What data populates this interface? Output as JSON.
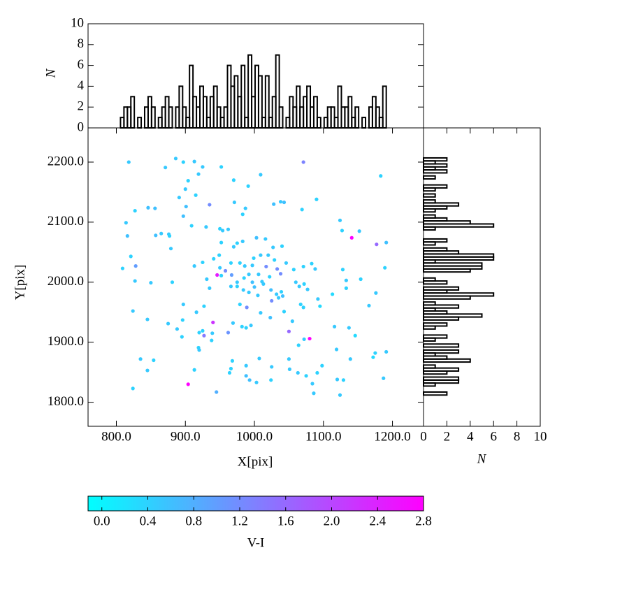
{
  "chart_data": [
    {
      "type": "scatter",
      "x_label": "X[pix]",
      "y_label": "Y[pix]",
      "colormap": "cool",
      "xlim": [
        759,
        1245
      ],
      "ylim": [
        1760,
        2257
      ],
      "xticks": [
        {
          "value": 800,
          "label": "800.0"
        },
        {
          "value": 900,
          "label": "900.0"
        },
        {
          "value": 1000,
          "label": "1000.0"
        },
        {
          "value": 1100,
          "label": "1100.0"
        },
        {
          "value": 1200,
          "label": "1200.0"
        }
      ],
      "yticks": [
        {
          "value": 1800,
          "label": "1800.0"
        },
        {
          "value": 1900,
          "label": "1900.0"
        },
        {
          "value": 2000,
          "label": "2000.0"
        },
        {
          "value": 2100,
          "label": "2100.0"
        },
        {
          "value": 2200,
          "label": "2200.0"
        }
      ],
      "x": [
        818,
        886,
        897,
        913,
        925,
        952,
        871,
        970,
        919,
        1009,
        1071,
        1183,
        904,
        991,
        900,
        891,
        915,
        935,
        901,
        846,
        856,
        827,
        971,
        987,
        1028,
        1038,
        1043,
        1090,
        1069,
        897,
        983,
        814,
        930,
        909,
        950,
        954,
        962,
        1124,
        1127,
        1152,
        1141,
        857,
        865,
        876,
        877,
        816,
        879,
        983,
        1003,
        1016,
        975,
        1027,
        1040,
        952,
        970,
        1191,
        1177,
        1009,
        999,
        1020,
        1029,
        949,
        821,
        809,
        828,
        913,
        925,
        941,
        950,
        966,
        979,
        986,
        997,
        1017,
        1033,
        1046,
        1057,
        1071,
        1083,
        1088,
        1128,
        1189,
        946,
        958,
        967,
        931,
        952,
        975,
        985,
        992,
        997,
        1006,
        1011,
        1022,
        1038,
        827,
        850,
        881,
        935,
        966,
        975,
        984,
        992,
        1000,
        1013,
        1024,
        1032,
        1039,
        1060,
        1065,
        1072,
        1077,
        1133,
        1133,
        1154,
        1176,
        1113,
        1005,
        1025,
        1092,
        1035,
        1041,
        897,
        927,
        979,
        989,
        1067,
        1071,
        1095,
        1166,
        824,
        1009,
        1043,
        916,
        1023,
        845,
        940,
        875,
        896,
        969,
        1055,
        995,
        982,
        1116,
        888,
        925,
        962,
        920,
        939,
        988,
        1050,
        1137,
        927,
        895,
        938,
        1146,
        1072,
        1080,
        1064,
        919,
        920,
        1119,
        1175,
        1191,
        1172,
        835,
        854,
        1007,
        968,
        1050,
        1139,
        988,
        1025,
        1098,
        1051,
        913,
        966,
        845,
        964,
        1063,
        1091,
        988,
        1075,
        993,
        1120,
        1129,
        1187,
        1003,
        1024,
        904,
        824,
        1084,
        945,
        1086,
        1124
      ],
      "y": [
        2200,
        2206,
        2200,
        2201,
        2192,
        2192,
        2191,
        2170,
        2180,
        2179,
        2200,
        2177,
        2169,
        2160,
        2155,
        2141,
        2145,
        2129,
        2126,
        2124,
        2123,
        2119,
        2133,
        2123,
        2130,
        2134,
        2133,
        2138,
        2121,
        2110,
        2113,
        2099,
        2092,
        2094,
        2089,
        2086,
        2088,
        2103,
        2086,
        2085,
        2074,
        2078,
        2081,
        2080,
        2077,
        2077,
        2056,
        2068,
        2074,
        2072,
        2065,
        2058,
        2060,
        2066,
        2059,
        2066,
        2063,
        2045,
        2040,
        2045,
        2037,
        2045,
        2043,
        2023,
        2027,
        2027,
        2033,
        2039,
        2024,
        2032,
        2032,
        2027,
        2028,
        2026,
        2022,
        2032,
        2021,
        2026,
        2031,
        2022,
        2021,
        2024,
        2012,
        2019,
        2012,
        2005,
        2011,
        2000,
        2007,
        2013,
        2000,
        2013,
        2001,
        2009,
        2014,
        2002,
        1999,
        2000,
        1990,
        1993,
        1993,
        1987,
        1983,
        1992,
        1997,
        1987,
        1980,
        1984,
        2000,
        1993,
        1997,
        1988,
        2003,
        1990,
        2005,
        1982,
        1980,
        1978,
        1969,
        1972,
        1974,
        1977,
        1963,
        1960,
        1963,
        1958,
        1963,
        1958,
        1960,
        1961,
        1952,
        1949,
        1951,
        1950,
        1941,
        1938,
        1933,
        1931,
        1937,
        1932,
        1935,
        1928,
        1926,
        1926,
        1922,
        1919,
        1916,
        1916,
        1915,
        1924,
        1918,
        1924,
        1911,
        1909,
        1903,
        1911,
        1905,
        1906,
        1895,
        1891,
        1887,
        1888,
        1882,
        1884,
        1875,
        1872,
        1870,
        1873,
        1869,
        1872,
        1872,
        1861,
        1859,
        1861,
        1855,
        1854,
        1856,
        1853,
        1849,
        1849,
        1849,
        1844,
        1844,
        1837,
        1838,
        1837,
        1840,
        1833,
        1837,
        1830,
        1823,
        1831,
        1817,
        1815,
        1812
      ],
      "color_values": [
        0.5,
        0.5,
        0.4,
        0.5,
        0.5,
        0.4,
        0.5,
        0.4,
        0.5,
        0.5,
        1.3,
        0.4,
        0.4,
        0.4,
        0.5,
        0.5,
        0.4,
        1.2,
        0.6,
        0.6,
        0.6,
        0.4,
        0.5,
        0.5,
        0.6,
        0.5,
        0.6,
        0.4,
        0.4,
        0.6,
        0.4,
        0.5,
        0.5,
        0.4,
        0.4,
        0.5,
        0.5,
        0.5,
        0.4,
        0.5,
        2.8,
        0.6,
        0.5,
        0.5,
        0.4,
        0.6,
        0.5,
        0.5,
        0.6,
        0.5,
        0.4,
        0.5,
        0.4,
        0.4,
        0.5,
        0.6,
        1.6,
        0.5,
        0.4,
        0.5,
        0.4,
        0.4,
        0.4,
        0.4,
        1.0,
        0.5,
        0.4,
        0.4,
        0.5,
        0.4,
        0.4,
        0.5,
        0.5,
        1.2,
        1.2,
        0.5,
        0.4,
        0.4,
        0.4,
        0.5,
        0.4,
        0.4,
        2.5,
        1.2,
        1.0,
        0.5,
        0.4,
        0.5,
        0.4,
        0.5,
        0.6,
        0.5,
        0.5,
        0.4,
        1.2,
        0.5,
        0.5,
        0.4,
        0.5,
        0.5,
        0.4,
        0.5,
        0.5,
        0.6,
        0.5,
        0.6,
        0.5,
        0.4,
        0.5,
        0.5,
        0.4,
        0.5,
        0.5,
        0.4,
        0.4,
        0.5,
        0.3,
        0.5,
        1.2,
        0.5,
        0.5,
        0.6,
        0.5,
        0.4,
        0.4,
        1.2,
        0.4,
        0.4,
        0.3,
        0.5,
        0.5,
        0.5,
        0.4,
        0.5,
        0.6,
        0.5,
        2.2,
        0.5,
        0.4,
        0.5,
        0.5,
        0.5,
        0.4,
        0.5,
        0.5,
        0.4,
        1.1,
        0.4,
        0.5,
        0.4,
        1.6,
        0.5,
        1.4,
        0.4,
        0.4,
        0.3,
        0.5,
        2.8,
        0.4,
        0.4,
        0.5,
        0.5,
        0.4,
        0.5,
        0.3,
        0.5,
        0.4,
        0.5,
        0.4,
        0.5,
        0.5,
        0.5,
        0.5,
        0.4,
        0.5,
        0.4,
        0.4,
        0.5,
        0.4,
        0.5,
        0.4,
        0.6,
        0.4,
        0.6,
        0.5,
        0.4,
        0.5,
        0.5,
        0.4,
        2.8,
        0.4,
        0.5,
        0.8,
        0.5,
        0.5
      ],
      "colorbar": {
        "label": "V-I",
        "lim": [
          -0.12,
          2.8
        ],
        "ticks": [
          {
            "value": 0,
            "label": "0.0"
          },
          {
            "value": 0.4,
            "label": "0.4"
          },
          {
            "value": 0.8,
            "label": "0.8"
          },
          {
            "value": 1.2,
            "label": "1.2"
          },
          {
            "value": 1.6,
            "label": "1.6"
          },
          {
            "value": 2,
            "label": "2.0"
          },
          {
            "value": 2.4,
            "label": "2.4"
          },
          {
            "value": 2.8,
            "label": "2.8"
          }
        ]
      }
    },
    {
      "type": "histogram",
      "orientation": "vertical",
      "y_label": "N",
      "color": "#000000",
      "xlim": [
        759,
        1245
      ],
      "ylim": [
        0,
        10
      ],
      "yticks": [
        0,
        2,
        4,
        6,
        8,
        10
      ],
      "bins": [
        806,
        811,
        816,
        821,
        826,
        831,
        836,
        841,
        846,
        851,
        856,
        861,
        866,
        871,
        876,
        881,
        886,
        891,
        896,
        901,
        906,
        911,
        916,
        921,
        926,
        931,
        936,
        941,
        946,
        951,
        956,
        961,
        966,
        971,
        976,
        981,
        986,
        991,
        996,
        1001,
        1006,
        1011,
        1016,
        1021,
        1026,
        1031,
        1036,
        1041,
        1046,
        1051,
        1056,
        1061,
        1066,
        1071,
        1076,
        1081,
        1086,
        1091,
        1096,
        1101,
        1106,
        1111,
        1116,
        1121,
        1126,
        1131,
        1136,
        1141,
        1146,
        1151,
        1156,
        1161,
        1166,
        1171,
        1176,
        1181,
        1186,
        1191
      ],
      "counts": [
        1,
        2,
        2,
        3,
        0,
        1,
        0,
        2,
        3,
        2,
        0,
        1,
        2,
        3,
        2,
        0,
        2,
        4,
        2,
        1,
        6,
        3,
        2,
        4,
        3,
        1,
        3,
        4,
        2,
        1,
        2,
        6,
        4,
        5,
        3,
        6,
        1,
        7,
        3,
        6,
        5,
        1,
        5,
        1,
        3,
        7,
        2,
        0,
        1,
        3,
        2,
        4,
        2,
        3,
        4,
        2,
        3,
        1,
        0,
        1,
        2,
        2,
        1,
        4,
        2,
        2,
        3,
        1,
        2,
        0,
        1,
        0,
        2,
        3,
        2,
        1,
        4
      ]
    },
    {
      "type": "histogram",
      "orientation": "horizontal",
      "x_label": "N",
      "color": "#000000",
      "xlim": [
        0,
        10
      ],
      "ylim": [
        1760,
        2257
      ],
      "xticks": [
        0,
        2,
        4,
        6,
        8,
        10
      ],
      "bins": [
        1812,
        1817,
        1822,
        1827,
        1832,
        1837,
        1842,
        1847,
        1852,
        1857,
        1862,
        1867,
        1872,
        1877,
        1882,
        1887,
        1892,
        1897,
        1902,
        1907,
        1912,
        1917,
        1922,
        1927,
        1932,
        1937,
        1942,
        1947,
        1952,
        1957,
        1962,
        1967,
        1972,
        1977,
        1982,
        1987,
        1992,
        1997,
        2002,
        2007,
        2012,
        2017,
        2022,
        2027,
        2032,
        2037,
        2042,
        2047,
        2052,
        2057,
        2062,
        2067,
        2072,
        2077,
        2082,
        2087,
        2092,
        2097,
        2102,
        2107,
        2112,
        2117,
        2122,
        2127,
        2132,
        2137,
        2142,
        2147,
        2152,
        2157,
        2162,
        2167,
        2172,
        2177,
        2182,
        2187,
        2192,
        2197,
        2202,
        2207
      ],
      "counts": [
        2,
        0,
        0,
        1,
        3,
        3,
        0,
        2,
        3,
        1,
        0,
        4,
        2,
        1,
        3,
        0,
        3,
        0,
        1,
        2,
        0,
        0,
        1,
        2,
        0,
        3,
        5,
        2,
        1,
        3,
        1,
        0,
        4,
        6,
        2,
        3,
        0,
        2,
        1,
        0,
        0,
        4,
        5,
        5,
        1,
        6,
        6,
        3,
        2,
        0,
        1,
        2,
        0,
        0,
        0,
        1,
        6,
        4,
        2,
        1,
        0,
        1,
        2,
        3,
        1,
        0,
        1,
        0,
        1,
        2,
        0,
        0,
        1,
        0,
        2,
        1,
        2,
        1,
        2
      ]
    }
  ]
}
